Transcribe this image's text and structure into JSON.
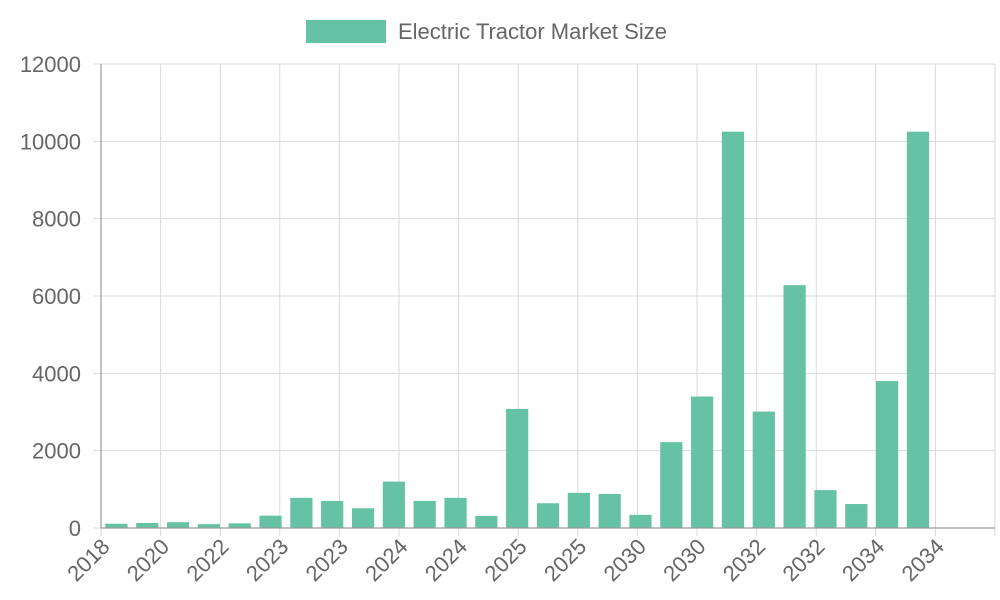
{
  "chart_data": {
    "type": "bar",
    "legend": {
      "label": "Electric Tractor Market Size",
      "position": "top",
      "color": "#66c2a5"
    },
    "x_tick_labels": [
      "2018",
      "2020",
      "2022",
      "2023",
      "2023",
      "2024",
      "2024",
      "2025",
      "2025",
      "2030",
      "2030",
      "2032",
      "2032",
      "2034",
      "2034"
    ],
    "y_ticks": [
      0,
      2000,
      4000,
      6000,
      8000,
      10000,
      12000
    ],
    "ylim": [
      0,
      12000
    ],
    "grid": true,
    "values": [
      110,
      130,
      150,
      100,
      120,
      320,
      780,
      700,
      510,
      1200,
      700,
      780,
      310,
      3080,
      640,
      910,
      880,
      340,
      2220,
      3400,
      10250,
      3010,
      6280,
      980,
      620,
      3800,
      10250,
      0,
      0
    ],
    "bar_color": "#66c2a5"
  }
}
